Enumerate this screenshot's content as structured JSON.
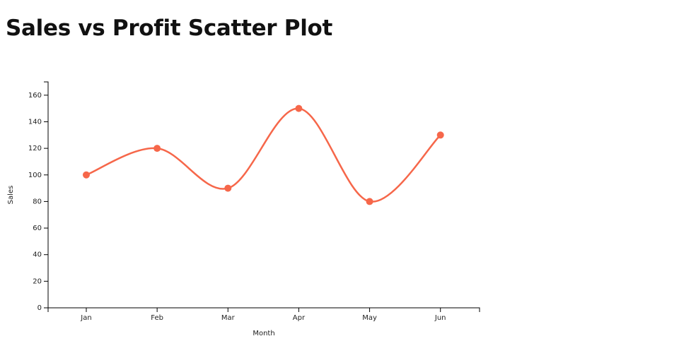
{
  "chart_data": {
    "type": "line",
    "title": "Sales vs Profit Scatter Plot",
    "x_label": "Month",
    "y_label": "Sales",
    "categories": [
      "Jan",
      "Feb",
      "Mar",
      "Apr",
      "May",
      "Jun"
    ],
    "series": [
      {
        "name": "Sales",
        "color": "#f6674a",
        "values": [
          100,
          120,
          90,
          150,
          80,
          130
        ]
      }
    ],
    "ylim": [
      0,
      170
    ],
    "yticks": [
      0,
      20,
      40,
      60,
      80,
      100,
      120,
      140,
      160
    ],
    "grid": false
  }
}
